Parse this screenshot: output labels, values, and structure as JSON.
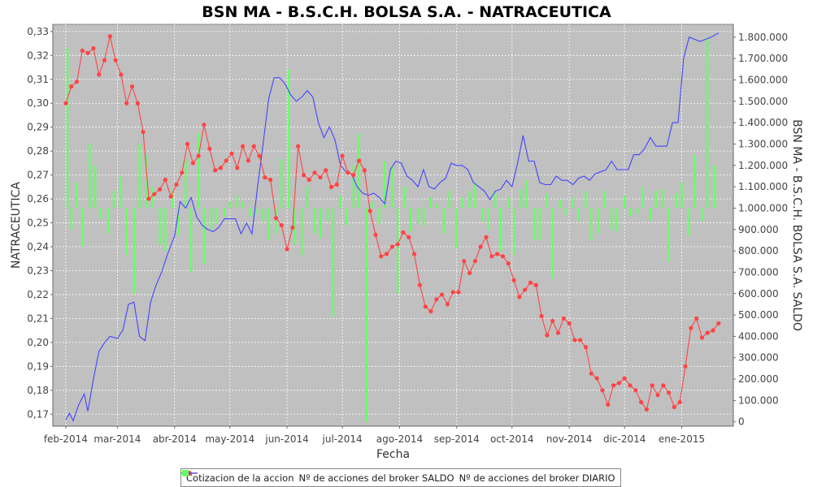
{
  "chart_data": {
    "type": "line",
    "title": "BSN MA - B.S.C.H. BOLSA S.A. - NATRACEUTICA",
    "xlabel": "Fecha",
    "ylabel": "NATRACEUTICA",
    "y2label": "BSN MA - B.S.C.H. BOLSA S.A. SALDO",
    "x_tick_labels": [
      "feb-2014",
      "mar-2014",
      "abr-2014",
      "may-2014",
      "jun-2014",
      "jul-2014",
      "ago-2014",
      "sep-2014",
      "oct-2014",
      "nov-2014",
      "dic-2014",
      "ene-2015"
    ],
    "x_ticks": [
      "2014-02-01",
      "2014-03-01",
      "2014-04-01",
      "2014-05-01",
      "2014-06-01",
      "2014-07-01",
      "2014-08-01",
      "2014-09-01",
      "2014-10-01",
      "2014-11-01",
      "2014-12-01",
      "2015-01-01"
    ],
    "xlim": [
      "2014-01-25",
      "2015-01-29"
    ],
    "ylim": [
      0.165,
      0.333
    ],
    "y_ticks": [
      0.17,
      0.18,
      0.19,
      0.2,
      0.21,
      0.22,
      0.23,
      0.24,
      0.25,
      0.26,
      0.27,
      0.28,
      0.29,
      0.3,
      0.31,
      0.32,
      0.33
    ],
    "y_tick_labels": [
      "0,17",
      "0,18",
      "0,19",
      "0,20",
      "0,21",
      "0,22",
      "0,23",
      "0,24",
      "0,25",
      "0,26",
      "0,27",
      "0,28",
      "0,29",
      "0,30",
      "0,31",
      "0,32",
      "0,33"
    ],
    "y2lim": [
      -20000,
      1860000
    ],
    "y2_ticks": [
      0,
      100000,
      200000,
      300000,
      400000,
      500000,
      600000,
      700000,
      800000,
      900000,
      1000000,
      1100000,
      1200000,
      1300000,
      1400000,
      1500000,
      1600000,
      1700000,
      1800000
    ],
    "y2_tick_labels": [
      "0",
      "100.000",
      "200.000",
      "300.000",
      "400.000",
      "500.000",
      "600.000",
      "700.000",
      "800.000",
      "900.000",
      "1.000.000",
      "1.100.000",
      "1.200.000",
      "1.300.000",
      "1.400.000",
      "1.500.000",
      "1.600.000",
      "1.700.000",
      "1.800.000"
    ],
    "grid": true,
    "legend_position": "bottom",
    "series": [
      {
        "name": "Cotizacion de la accion",
        "color": "#ff4444",
        "axis": "left",
        "style": "line-markers",
        "x": [
          "2014-02-01",
          "2014-02-04",
          "2014-02-07",
          "2014-02-10",
          "2014-02-13",
          "2014-02-16",
          "2014-02-19",
          "2014-02-22",
          "2014-02-25",
          "2014-02-28",
          "2014-03-03",
          "2014-03-06",
          "2014-03-09",
          "2014-03-12",
          "2014-03-15",
          "2014-03-18",
          "2014-03-21",
          "2014-03-24",
          "2014-03-27",
          "2014-03-30",
          "2014-04-02",
          "2014-04-05",
          "2014-04-08",
          "2014-04-11",
          "2014-04-14",
          "2014-04-17",
          "2014-04-20",
          "2014-04-23",
          "2014-04-26",
          "2014-04-29",
          "2014-05-02",
          "2014-05-05",
          "2014-05-08",
          "2014-05-11",
          "2014-05-14",
          "2014-05-17",
          "2014-05-20",
          "2014-05-23",
          "2014-05-26",
          "2014-05-29",
          "2014-06-01",
          "2014-06-04",
          "2014-06-07",
          "2014-06-10",
          "2014-06-13",
          "2014-06-16",
          "2014-06-19",
          "2014-06-22",
          "2014-06-25",
          "2014-06-28",
          "2014-07-01",
          "2014-07-04",
          "2014-07-07",
          "2014-07-10",
          "2014-07-13",
          "2014-07-16",
          "2014-07-19",
          "2014-07-22",
          "2014-07-25",
          "2014-07-28",
          "2014-07-31",
          "2014-08-03",
          "2014-08-06",
          "2014-08-09",
          "2014-08-12",
          "2014-08-15",
          "2014-08-18",
          "2014-08-21",
          "2014-08-24",
          "2014-08-27",
          "2014-08-30",
          "2014-09-02",
          "2014-09-05",
          "2014-09-08",
          "2014-09-11",
          "2014-09-14",
          "2014-09-17",
          "2014-09-20",
          "2014-09-23",
          "2014-09-26",
          "2014-09-29",
          "2014-10-02",
          "2014-10-05",
          "2014-10-08",
          "2014-10-11",
          "2014-10-14",
          "2014-10-17",
          "2014-10-20",
          "2014-10-23",
          "2014-10-26",
          "2014-10-29",
          "2014-11-01",
          "2014-11-04",
          "2014-11-07",
          "2014-11-10",
          "2014-11-13",
          "2014-11-16",
          "2014-11-19",
          "2014-11-22",
          "2014-11-25",
          "2014-11-28",
          "2014-12-01",
          "2014-12-04",
          "2014-12-07",
          "2014-12-10",
          "2014-12-13",
          "2014-12-16",
          "2014-12-19",
          "2014-12-22",
          "2014-12-25",
          "2014-12-28",
          "2014-12-31",
          "2015-01-03",
          "2015-01-06",
          "2015-01-09",
          "2015-01-12",
          "2015-01-15",
          "2015-01-18",
          "2015-01-21"
        ],
        "y": [
          0.3,
          0.307,
          0.309,
          0.322,
          0.321,
          0.323,
          0.312,
          0.318,
          0.328,
          0.318,
          0.312,
          0.3,
          0.307,
          0.3,
          0.288,
          0.26,
          0.262,
          0.264,
          0.268,
          0.261,
          0.266,
          0.271,
          0.283,
          0.275,
          0.278,
          0.291,
          0.281,
          0.272,
          0.273,
          0.276,
          0.279,
          0.273,
          0.282,
          0.276,
          0.282,
          0.278,
          0.269,
          0.268,
          0.252,
          0.249,
          0.239,
          0.248,
          0.282,
          0.27,
          0.268,
          0.271,
          0.269,
          0.272,
          0.265,
          0.266,
          0.278,
          0.271,
          0.27,
          0.276,
          0.272,
          0.255,
          0.245,
          0.236,
          0.237,
          0.24,
          0.241,
          0.246,
          0.244,
          0.237,
          0.224,
          0.215,
          0.213,
          0.218,
          0.22,
          0.216,
          0.221,
          0.221,
          0.234,
          0.229,
          0.234,
          0.24,
          0.244,
          0.236,
          0.237,
          0.236,
          0.233,
          0.226,
          0.219,
          0.222,
          0.225,
          0.224,
          0.211,
          0.203,
          0.209,
          0.204,
          0.21,
          0.208,
          0.201,
          0.201,
          0.198,
          0.187,
          0.185,
          0.18,
          0.174,
          0.182,
          0.183,
          0.185,
          0.182,
          0.18,
          0.175,
          0.172,
          0.182,
          0.178,
          0.182,
          0.179,
          0.173,
          0.175,
          0.19,
          0.206,
          0.21,
          0.202,
          0.204,
          0.205,
          0.208
        ]
      },
      {
        "name": "Nº de acciones del broker SALDO",
        "color": "#4444ff",
        "axis": "right",
        "style": "line",
        "x": [
          "2014-02-01",
          "2014-02-03",
          "2014-02-05",
          "2014-02-08",
          "2014-02-11",
          "2014-02-13",
          "2014-02-16",
          "2014-02-19",
          "2014-02-22",
          "2014-02-25",
          "2014-03-01",
          "2014-03-04",
          "2014-03-07",
          "2014-03-10",
          "2014-03-13",
          "2014-03-16",
          "2014-03-19",
          "2014-03-22",
          "2014-03-25",
          "2014-03-28",
          "2014-04-01",
          "2014-04-04",
          "2014-04-07",
          "2014-04-10",
          "2014-04-13",
          "2014-04-16",
          "2014-04-19",
          "2014-04-22",
          "2014-04-25",
          "2014-04-28",
          "2014-05-01",
          "2014-05-04",
          "2014-05-07",
          "2014-05-10",
          "2014-05-13",
          "2014-05-16",
          "2014-05-19",
          "2014-05-22",
          "2014-05-25",
          "2014-05-28",
          "2014-05-31",
          "2014-06-03",
          "2014-06-06",
          "2014-06-09",
          "2014-06-12",
          "2014-06-15",
          "2014-06-18",
          "2014-06-21",
          "2014-06-24",
          "2014-06-27",
          "2014-06-30",
          "2014-07-03",
          "2014-07-06",
          "2014-07-09",
          "2014-07-12",
          "2014-07-15",
          "2014-07-18",
          "2014-07-21",
          "2014-07-24",
          "2014-07-27",
          "2014-07-30",
          "2014-08-02",
          "2014-08-05",
          "2014-08-08",
          "2014-08-11",
          "2014-08-14",
          "2014-08-17",
          "2014-08-20",
          "2014-08-23",
          "2014-08-26",
          "2014-08-29",
          "2014-09-01",
          "2014-09-04",
          "2014-09-07",
          "2014-09-10",
          "2014-09-13",
          "2014-09-16",
          "2014-09-19",
          "2014-09-22",
          "2014-09-25",
          "2014-09-28",
          "2014-10-01",
          "2014-10-04",
          "2014-10-07",
          "2014-10-10",
          "2014-10-13",
          "2014-10-16",
          "2014-10-19",
          "2014-10-22",
          "2014-10-25",
          "2014-10-28",
          "2014-10-31",
          "2014-11-03",
          "2014-11-06",
          "2014-11-09",
          "2014-11-12",
          "2014-11-15",
          "2014-11-18",
          "2014-11-21",
          "2014-11-24",
          "2014-11-27",
          "2014-11-30",
          "2014-12-03",
          "2014-12-06",
          "2014-12-09",
          "2014-12-12",
          "2014-12-15",
          "2014-12-18",
          "2014-12-21",
          "2014-12-24",
          "2014-12-27",
          "2014-12-30",
          "2015-01-02",
          "2015-01-05",
          "2015-01-08",
          "2015-01-11",
          "2015-01-14",
          "2015-01-17",
          "2015-01-21"
        ],
        "y": [
          10000,
          40000,
          5000,
          80000,
          130000,
          50000,
          200000,
          330000,
          370000,
          400000,
          390000,
          430000,
          550000,
          560000,
          400000,
          380000,
          560000,
          640000,
          700000,
          780000,
          870000,
          1030000,
          1000000,
          1050000,
          960000,
          920000,
          900000,
          890000,
          910000,
          950000,
          950000,
          950000,
          880000,
          930000,
          880000,
          1100000,
          1300000,
          1510000,
          1610000,
          1610000,
          1580000,
          1530000,
          1500000,
          1520000,
          1550000,
          1520000,
          1400000,
          1330000,
          1380000,
          1320000,
          1200000,
          1170000,
          1160000,
          1100000,
          1070000,
          1060000,
          1070000,
          1050000,
          1020000,
          1180000,
          1220000,
          1210000,
          1150000,
          1130000,
          1100000,
          1180000,
          1100000,
          1090000,
          1120000,
          1140000,
          1210000,
          1200000,
          1200000,
          1180000,
          1120000,
          1100000,
          1080000,
          1040000,
          1080000,
          1090000,
          1130000,
          1100000,
          1210000,
          1340000,
          1220000,
          1220000,
          1120000,
          1110000,
          1110000,
          1150000,
          1130000,
          1130000,
          1110000,
          1140000,
          1150000,
          1130000,
          1160000,
          1170000,
          1180000,
          1220000,
          1180000,
          1180000,
          1180000,
          1250000,
          1250000,
          1280000,
          1330000,
          1290000,
          1290000,
          1290000,
          1400000,
          1400000,
          1700000,
          1800000,
          1790000,
          1780000,
          1790000,
          1800000,
          1820000
        ]
      },
      {
        "name": "Nº de acciones del broker DIARIO",
        "color": "#66ff66",
        "axis": "right",
        "style": "bar",
        "baseline": 1000000,
        "x": [
          "2014-02-02",
          "2014-02-04",
          "2014-02-07",
          "2014-02-10",
          "2014-02-14",
          "2014-02-17",
          "2014-02-20",
          "2014-02-24",
          "2014-02-27",
          "2014-03-03",
          "2014-03-06",
          "2014-03-10",
          "2014-03-13",
          "2014-03-17",
          "2014-03-20",
          "2014-03-24",
          "2014-03-27",
          "2014-03-31",
          "2014-04-03",
          "2014-04-07",
          "2014-04-10",
          "2014-04-14",
          "2014-04-17",
          "2014-04-21",
          "2014-04-24",
          "2014-04-28",
          "2014-05-01",
          "2014-05-05",
          "2014-05-08",
          "2014-05-12",
          "2014-05-15",
          "2014-05-19",
          "2014-05-22",
          "2014-05-26",
          "2014-05-29",
          "2014-06-02",
          "2014-06-05",
          "2014-06-09",
          "2014-06-12",
          "2014-06-16",
          "2014-06-19",
          "2014-06-23",
          "2014-06-26",
          "2014-06-30",
          "2014-07-03",
          "2014-07-07",
          "2014-07-10",
          "2014-07-14",
          "2014-07-17",
          "2014-07-21",
          "2014-07-24",
          "2014-07-28",
          "2014-07-31",
          "2014-08-04",
          "2014-08-07",
          "2014-08-11",
          "2014-08-14",
          "2014-08-18",
          "2014-08-21",
          "2014-08-25",
          "2014-08-28",
          "2014-09-01",
          "2014-09-04",
          "2014-09-08",
          "2014-09-11",
          "2014-09-15",
          "2014-09-18",
          "2014-09-22",
          "2014-09-25",
          "2014-09-29",
          "2014-10-02",
          "2014-10-06",
          "2014-10-09",
          "2014-10-13",
          "2014-10-16",
          "2014-10-20",
          "2014-10-23",
          "2014-10-27",
          "2014-10-30",
          "2014-11-03",
          "2014-11-06",
          "2014-11-10",
          "2014-11-13",
          "2014-11-17",
          "2014-11-20",
          "2014-11-24",
          "2014-11-27",
          "2014-12-01",
          "2014-12-04",
          "2014-12-08",
          "2014-12-11",
          "2014-12-15",
          "2014-12-18",
          "2014-12-22",
          "2014-12-25",
          "2014-12-29",
          "2015-01-01",
          "2015-01-05",
          "2015-01-08",
          "2015-01-12",
          "2015-01-15",
          "2015-01-19"
        ],
        "values": [
          750000,
          -100000,
          120000,
          -180000,
          300000,
          200000,
          -50000,
          -120000,
          80000,
          150000,
          -220000,
          -400000,
          300000,
          250000,
          100000,
          -170000,
          -200000,
          80000,
          -130000,
          230000,
          -300000,
          350000,
          -260000,
          -100000,
          -70000,
          -40000,
          30000,
          60000,
          30000,
          -40000,
          -30000,
          -60000,
          -150000,
          -120000,
          230000,
          650000,
          -170000,
          -220000,
          100000,
          -120000,
          -140000,
          -60000,
          -510000,
          60000,
          -80000,
          200000,
          350000,
          -1000000,
          30000,
          -70000,
          220000,
          200000,
          -400000,
          100000,
          -110000,
          -70000,
          -80000,
          50000,
          20000,
          -120000,
          80000,
          -190000,
          50000,
          80000,
          120000,
          -60000,
          -100000,
          70000,
          -200000,
          50000,
          -220000,
          90000,
          130000,
          -150000,
          -150000,
          70000,
          -330000,
          40000,
          -30000,
          50000,
          -60000,
          80000,
          -150000,
          -120000,
          80000,
          -100000,
          -110000,
          60000,
          -40000,
          -30000,
          100000,
          -60000,
          80000,
          90000,
          -250000,
          70000,
          120000,
          -130000,
          250000,
          -60000,
          800000,
          200000
        ]
      }
    ]
  }
}
